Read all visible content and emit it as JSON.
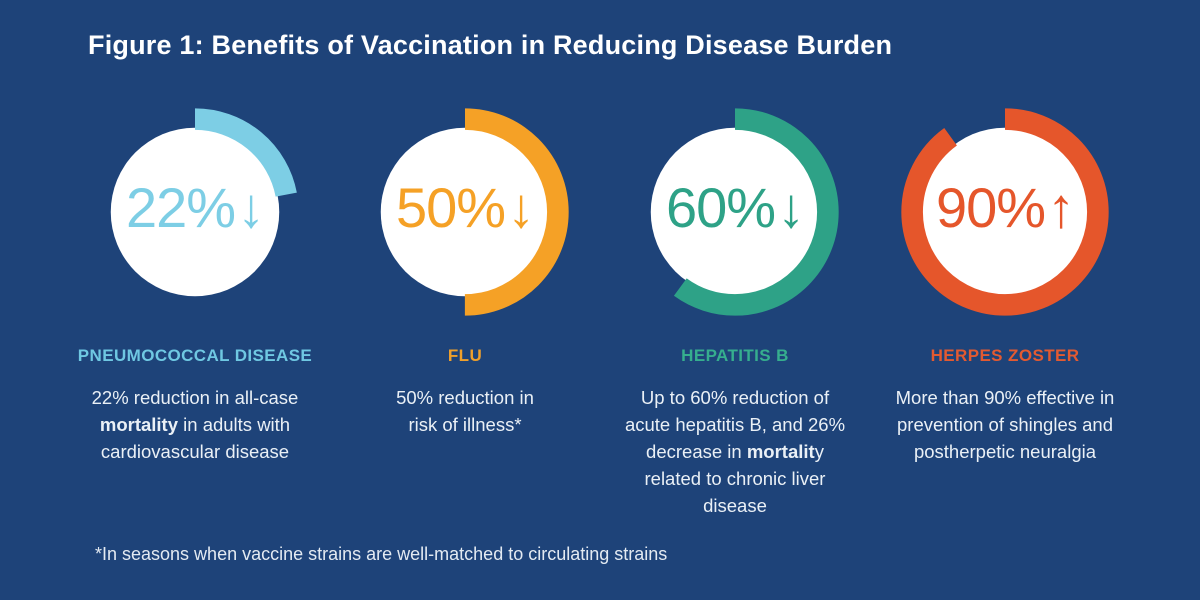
{
  "title": "Figure 1: Benefits of Vaccination in Reducing Disease Burden",
  "footnote": "*In seasons when vaccine strains are well-matched to circulating strains",
  "colors": {
    "background": "#1E4379",
    "title_text": "#FFFFFF",
    "body_text": "#EAF0F6",
    "pneumococcal_blue": "#7DCEE5",
    "flu_orange": "#F5A126",
    "hepatitis_green": "#2EA287",
    "zoster_red": "#E5562B"
  },
  "charts": [
    {
      "id": "pneumococcal-disease",
      "stat": "22%",
      "arrow_glyph": "↓",
      "direction": "down",
      "percent": 22,
      "color": "#7DCEE5",
      "label": "PNEUMOCOCCAL DISEASE",
      "label_color": "#6FC8E2",
      "description": [
        {
          "text": "22% reduction in all-case ",
          "bold": false
        },
        {
          "text": "mortality",
          "bold": true
        },
        {
          "text": " in adults with cardiovascular disease",
          "bold": false
        }
      ]
    },
    {
      "id": "flu",
      "stat": "50%",
      "arrow_glyph": "↓",
      "direction": "down",
      "percent": 50,
      "color": "#F5A126",
      "label": "FLU",
      "label_color": "#F0A02B",
      "description": [
        {
          "text": "50% reduction in risk of illness*",
          "bold": false
        }
      ]
    },
    {
      "id": "hepatitis-b",
      "stat": "60%",
      "arrow_glyph": "↓",
      "direction": "down",
      "percent": 60,
      "color": "#2EA287",
      "label": "HEPATITIS B",
      "label_color": "#36AE8E",
      "description": [
        {
          "text": "Up to 60% reduction of acute hepatitis B, and 26% decrease in ",
          "bold": false
        },
        {
          "text": "mortalit",
          "bold": true
        },
        {
          "text": "y related to chronic liver disease",
          "bold": false
        }
      ]
    },
    {
      "id": "herpes-zoster",
      "stat": "90%",
      "arrow_glyph": "↑",
      "direction": "up",
      "percent": 90,
      "color": "#E5562B",
      "label": "HERPES ZOSTER",
      "label_color": "#E35A31",
      "description": [
        {
          "text": "More than 90% effective in prevention of shingles and postherpetic neuralgia",
          "bold": false
        }
      ]
    }
  ],
  "chart_data": {
    "type": "pie",
    "subtype": "donut-progress",
    "title": "Figure 1: Benefits of Vaccination in Reducing Disease Burden",
    "units": "percent",
    "note": "*In seasons when vaccine strains are well-matched to circulating strains",
    "series": [
      {
        "name": "Pneumococcal disease",
        "value": 22,
        "direction": "down",
        "color": "#7DCEE5",
        "caption": "22% reduction in all-case mortality in adults with cardiovascular disease"
      },
      {
        "name": "Flu",
        "value": 50,
        "direction": "down",
        "color": "#F5A126",
        "caption": "50% reduction in risk of illness*"
      },
      {
        "name": "Hepatitis B",
        "value": 60,
        "direction": "down",
        "color": "#2EA287",
        "caption": "Up to 60% reduction of acute hepatitis B, and 26% decrease in mortality related to chronic liver disease"
      },
      {
        "name": "Herpes zoster",
        "value": 90,
        "direction": "up",
        "color": "#E5562B",
        "caption": "More than 90% effective in prevention of shingles and postherpetic neuralgia"
      }
    ],
    "layout": {
      "arc_start": "12 o'clock",
      "arc_sweep": "clockwise",
      "legend": false,
      "grid": false
    }
  }
}
